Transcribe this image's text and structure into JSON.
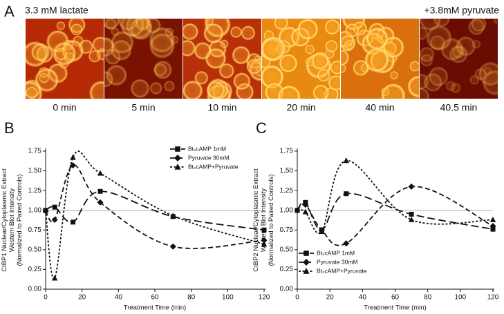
{
  "panel_a": {
    "label": "A",
    "left_note": "3.3 mM lactate",
    "right_note": "+3.8mM pyruvate",
    "images": [
      "0 min",
      "5 min",
      "10 min",
      "20 min",
      "40 min",
      "40.5 min"
    ]
  },
  "chart_data": [
    {
      "type": "line",
      "panel": "B",
      "ylabel": [
        "CtBP1 Nuclear/Cytoplasmic Extract",
        "Western Blot Intensity",
        "(Normalized to Paired Controls)"
      ],
      "xlabel": "Treatment Time (min)",
      "xlim": [
        0,
        120
      ],
      "xticks": [
        0,
        20,
        40,
        60,
        80,
        100,
        120
      ],
      "ylim": [
        0,
        1.75
      ],
      "yticks": [
        {
          "value": 0,
          "label": "0.00"
        },
        {
          "value": 0.25,
          "label": "0.25"
        },
        {
          "value": 0.5,
          "label": "0.50"
        },
        {
          "value": 0.75,
          "label": "0.75"
        },
        {
          "value": 1,
          "label": "1.00"
        },
        {
          "value": 1.25,
          "label": "1.25"
        },
        {
          "value": 1.5,
          "label": "1.50"
        },
        {
          "value": 1.75,
          "label": "1.75"
        }
      ],
      "hline": 1,
      "legend": "upper right",
      "x": [
        0,
        5,
        15,
        30,
        70,
        120
      ],
      "series": [
        {
          "name": "Bt₂cAMP 1mM",
          "color": "#111111",
          "marker": "square",
          "dash": "long",
          "values": [
            1.0,
            1.04,
            0.85,
            1.24,
            0.92,
            0.75
          ]
        },
        {
          "name": "Pyruvate 30mM",
          "color": "#111111",
          "marker": "diamond",
          "dash": "medium",
          "values": [
            0.99,
            0.88,
            1.57,
            1.1,
            0.54,
            0.62
          ]
        },
        {
          "name": "Bt₂cAMP+Pyruvate",
          "color": "#111111",
          "marker": "triangle",
          "dash": "short",
          "values": [
            1.0,
            0.14,
            1.67,
            1.47,
            0.93,
            0.57
          ]
        }
      ]
    },
    {
      "type": "line",
      "panel": "C",
      "ylabel": [
        "CtBP2 Nuclear/Cytoplasmic Extract",
        "Western Blot Intensity",
        "(Normalized to Paired Controls)"
      ],
      "xlabel": "Treatment Time (min)",
      "xlim": [
        0,
        120
      ],
      "xticks": [
        0,
        20,
        40,
        60,
        80,
        100,
        120
      ],
      "ylim": [
        0,
        1.75
      ],
      "yticks": [
        {
          "value": 0,
          "label": "0.00"
        },
        {
          "value": 0.25,
          "label": "0.25"
        },
        {
          "value": 0.5,
          "label": "0.50"
        },
        {
          "value": 0.75,
          "label": "0.75"
        },
        {
          "value": 1,
          "label": "1.00"
        },
        {
          "value": 1.25,
          "label": "1.25"
        },
        {
          "value": 1.5,
          "label": "1.50"
        },
        {
          "value": 1.75,
          "label": "1.75"
        }
      ],
      "hline": 1,
      "legend": "lower right",
      "x": [
        0,
        5,
        15,
        30,
        70,
        120
      ],
      "series": [
        {
          "name": "Bt₂cAMP 1mM",
          "color": "#111111",
          "marker": "square",
          "dash": "long",
          "values": [
            1.0,
            1.1,
            0.75,
            1.21,
            0.95,
            0.76
          ]
        },
        {
          "name": "Pyruvate 30mM",
          "color": "#111111",
          "marker": "diamond",
          "dash": "medium",
          "values": [
            1.0,
            1.07,
            0.75,
            0.58,
            1.3,
            0.8
          ]
        },
        {
          "name": "Bt₂cAMP+Pyruvate",
          "color": "#111111",
          "marker": "triangle",
          "dash": "short",
          "values": [
            1.0,
            0.98,
            0.73,
            1.63,
            0.88,
            0.88
          ]
        }
      ]
    }
  ]
}
